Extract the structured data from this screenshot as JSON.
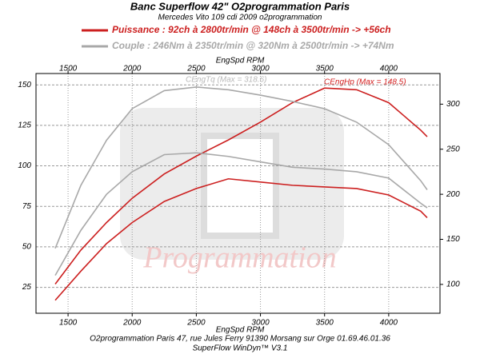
{
  "chart_data": {
    "type": "line",
    "title": "Banc Superflow 42\" O2programmation Paris",
    "subtitle": "Mercedes Vito 109 cdi 2009 o2programmation",
    "x_label": "EngSpd RPM",
    "footer": [
      "O2programmation Paris 47, rue Jules Ferry 91390 Morsang sur Orge 01.69.46.01.36",
      "SuperFlow WinDyn™ V3.1"
    ],
    "watermark": "Programmation",
    "annotations": [
      {
        "text": "CEngHp (Max = 148.5)",
        "color": "#d42020"
      },
      {
        "text": "CEngTq (Max = 318.6)",
        "color": "#b8b8b8"
      }
    ],
    "x": [
      1400,
      1600,
      1800,
      2000,
      2250,
      2500,
      2750,
      3000,
      3250,
      3500,
      3750,
      4000,
      4250,
      4300
    ],
    "series": [
      {
        "name": "Puissance : 92ch à 2800tr/min @ 148ch à 3500tr/min  -> +56ch",
        "color": "#cc1f1f",
        "values": [
          27,
          48,
          65,
          80,
          95,
          106,
          116,
          127,
          139,
          148,
          147,
          139,
          122,
          118
        ]
      },
      {
        "color": "#cc1f1f",
        "values": [
          17,
          35,
          52,
          65,
          78,
          86,
          92,
          90,
          88,
          87,
          86,
          82,
          72,
          68
        ]
      },
      {
        "name": "Couple :  246Nm à 2350tr/min @ 320Nm à 2500tr/min -> +74Nm",
        "color": "#a8a8a8",
        "axis": "y2",
        "values": [
          140,
          210,
          260,
          295,
          315,
          319,
          316,
          310,
          303,
          295,
          280,
          255,
          215,
          205
        ]
      },
      {
        "color": "#a8a8a8",
        "axis": "y2",
        "values": [
          110,
          160,
          200,
          225,
          244,
          246,
          242,
          236,
          230,
          228,
          225,
          218,
          190,
          185
        ]
      }
    ],
    "xlim": [
      1250,
      4400
    ],
    "xticks": [
      1500,
      2000,
      2500,
      3000,
      3500,
      4000
    ],
    "ylim": [
      9,
      157
    ],
    "yticks": [
      25,
      50,
      75,
      100,
      125,
      150
    ],
    "y2lim": [
      68,
      334
    ],
    "y2ticks": [
      100,
      150,
      200,
      250,
      300
    ],
    "grid": true
  }
}
